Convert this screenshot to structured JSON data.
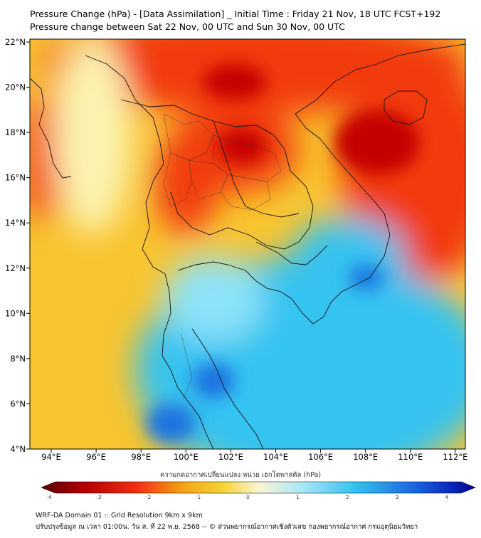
{
  "header": {
    "title_line1": "Pressure Change (hPa) - [Data Assimilation] _ Initial Time : Friday 21 Nov, 18 UTC FCST+192",
    "title_line2": "Pressure change between Sat 22 Nov, 00 UTC and Sun 30 Nov, 00 UTC"
  },
  "map": {
    "lon_labels": [
      "94°E",
      "96°E",
      "98°E",
      "100°E",
      "102°E",
      "104°E",
      "106°E",
      "108°E",
      "110°E",
      "112°E"
    ],
    "lat_labels": [
      "22°N",
      "20°N",
      "18°N",
      "16°N",
      "14°N",
      "12°N",
      "10°N",
      "8°N",
      "6°N",
      "4°N"
    ],
    "colors": {
      "strong_fall": "#c40000",
      "fall": "#f23a0a",
      "moderate_fall": "#f6a51a",
      "slight_fall": "#f8d23a",
      "neutral": "#fbf3b0",
      "slight_rise": "#8de3f8",
      "rise": "#36c3f0",
      "strong_rise": "#1a73e0"
    }
  },
  "colorbar": {
    "title": "ความกดอากาศเปลี่ยนแปลง หน่วย เฮกโตพาสคัล (hPa)",
    "ticks": [
      "-4",
      "-3",
      "-2",
      "-1",
      "0",
      "1",
      "2",
      "3",
      "4"
    ]
  },
  "footer": {
    "line1": "WRF-DA Domain 01 :: Grid Resolution 9km x 9km",
    "line2": "ปรับปรุงข้อมูล ณ เวลา 01:00น. วัน ส. ที่ 22 พ.ย. 2568 -- © ส่วนพยากรณ์อากาศเชิงตัวเลข กองพยากรณ์อากาศ กรมอุตุนิยมวิทยา"
  }
}
